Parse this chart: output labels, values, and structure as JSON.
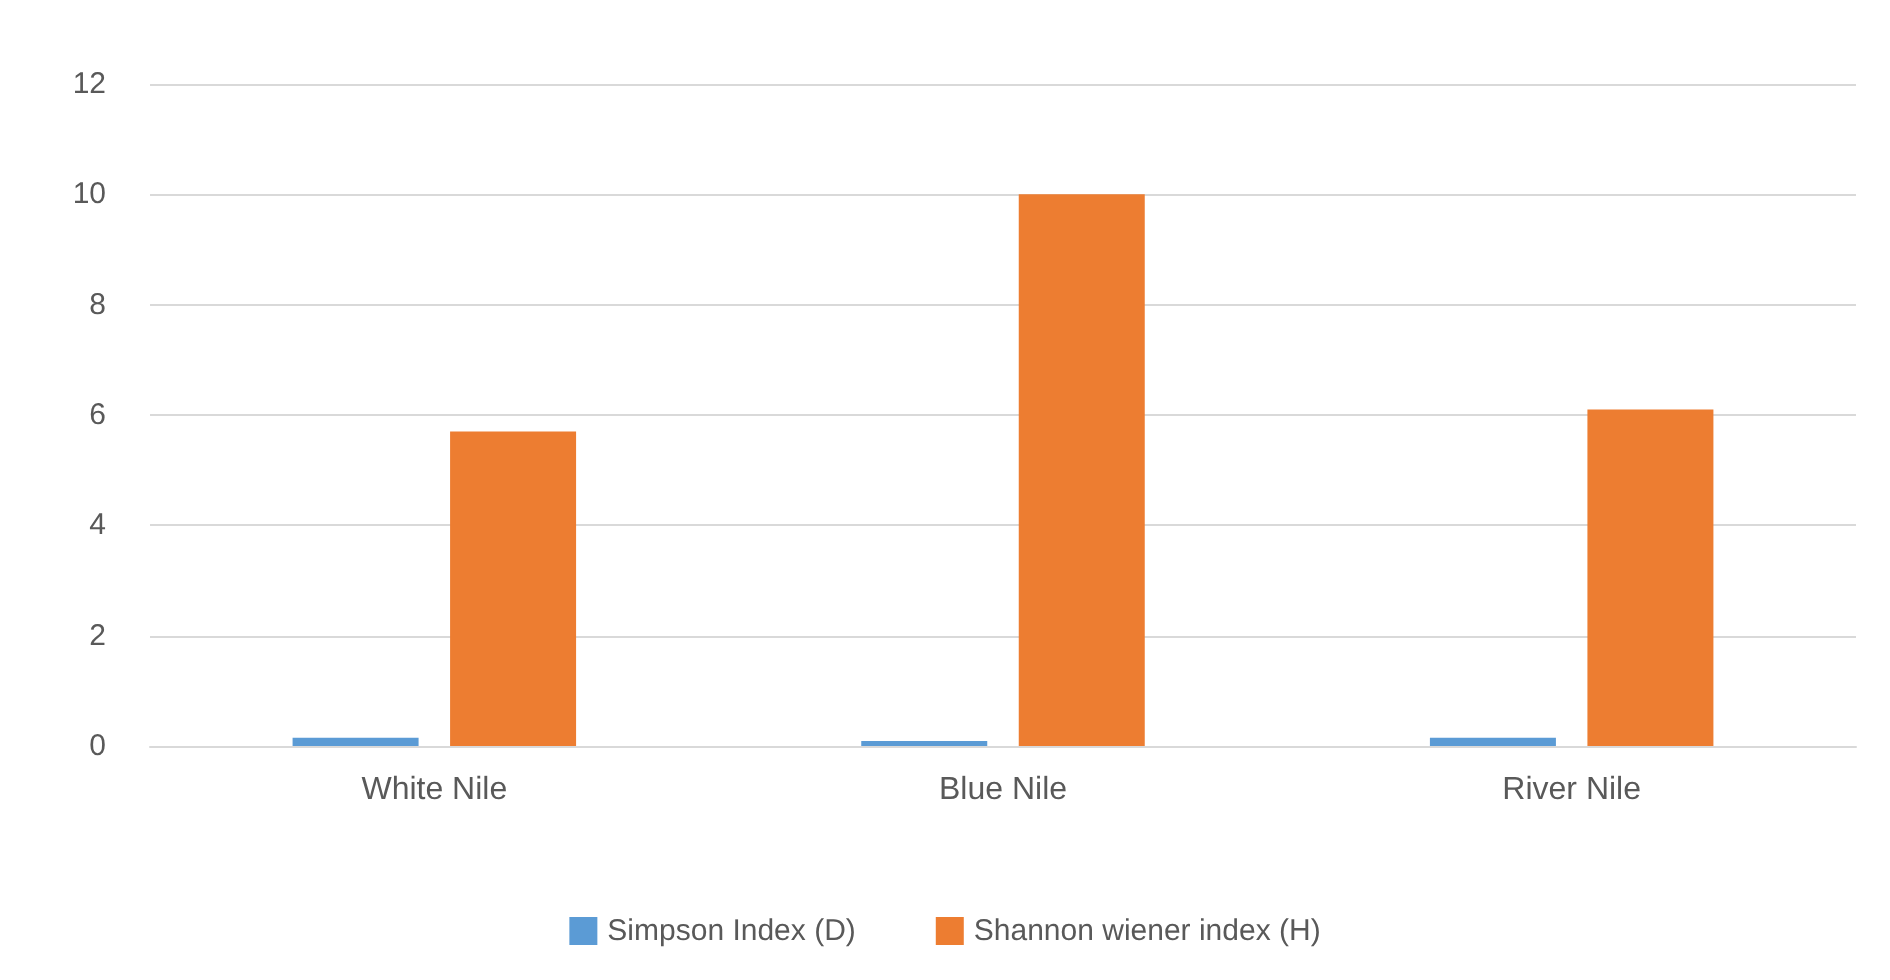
{
  "chart_data": {
    "type": "bar",
    "categories": [
      "White Nile",
      "Blue Nile",
      "River Nile"
    ],
    "series": [
      {
        "name": "Simpson Index (D)",
        "color": "#5b9bd5",
        "values": [
          0.15,
          0.09,
          0.15
        ]
      },
      {
        "name": "Shannon wiener index (H)",
        "color": "#ed7d31",
        "values": [
          5.7,
          10,
          6.1
        ]
      }
    ],
    "ylim": [
      0,
      12
    ],
    "yticks": [
      0,
      2,
      4,
      6,
      8,
      10,
      12
    ],
    "grid": "y",
    "legend": "bottom"
  }
}
